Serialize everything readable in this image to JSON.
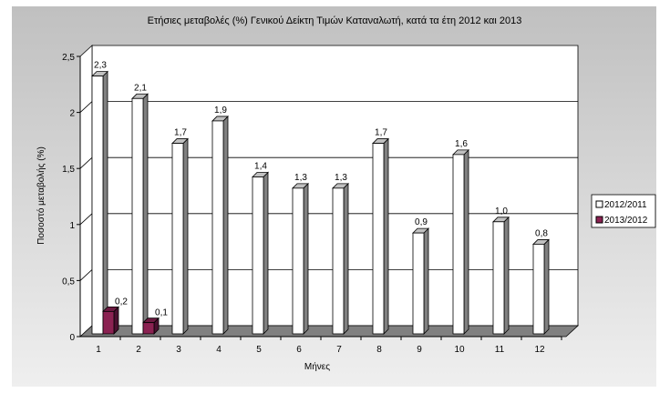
{
  "chart_data": {
    "type": "bar",
    "title": "Ετήσιες μεταβολές (%) Γενικού Δείκτη Τιμών Καταναλωτή, κατά τα έτη 2012 και 2013",
    "xlabel": "Μήνες",
    "ylabel": "Ποσοστό μεταβολής (%)",
    "ylim": [
      0,
      2.5
    ],
    "yticks": [
      "0",
      "0,5",
      "1",
      "1,5",
      "2",
      "2,5"
    ],
    "categories": [
      "1",
      "2",
      "3",
      "4",
      "5",
      "6",
      "7",
      "8",
      "9",
      "10",
      "11",
      "12"
    ],
    "series": [
      {
        "name": "2012/2011",
        "color": "#ffffff",
        "values": [
          2.3,
          2.1,
          1.7,
          1.9,
          1.4,
          1.3,
          1.3,
          1.7,
          0.9,
          1.6,
          1.0,
          0.8
        ],
        "labels": [
          "2,3",
          "2,1",
          "1,7",
          "1,9",
          "1,4",
          "1,3",
          "1,3",
          "1,7",
          "0,9",
          "1,6",
          "1,0",
          "0,8"
        ]
      },
      {
        "name": "2013/2012",
        "color": "#8b2252",
        "values": [
          0.2,
          0.1,
          null,
          null,
          null,
          null,
          null,
          null,
          null,
          null,
          null,
          null
        ],
        "labels": [
          "0,2",
          "0,1"
        ]
      }
    ],
    "grid": true,
    "legend": "right"
  }
}
